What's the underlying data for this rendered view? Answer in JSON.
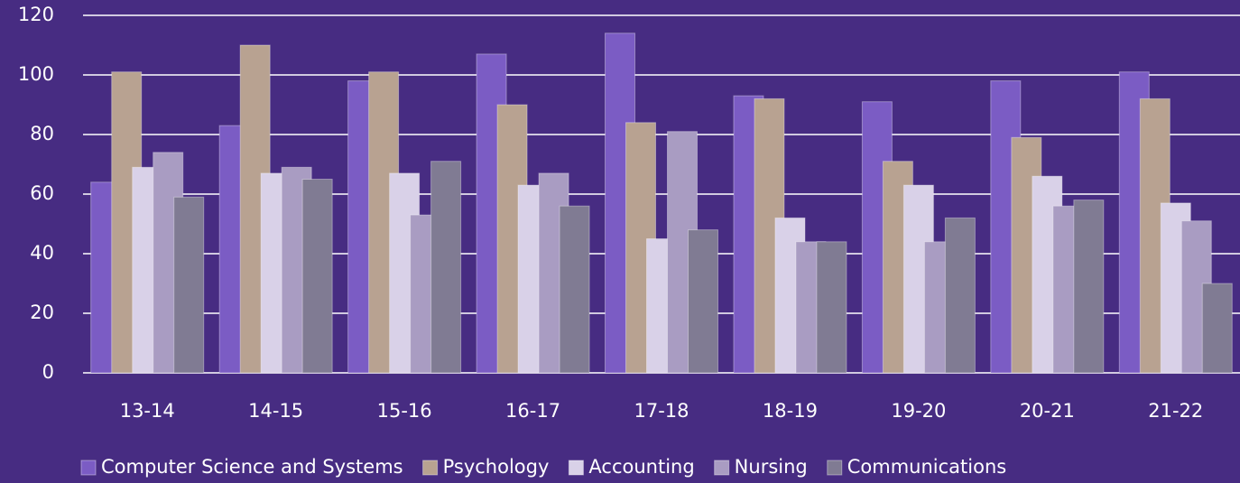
{
  "chart_data": {
    "type": "bar",
    "categories": [
      "13-14",
      "14-15",
      "15-16",
      "16-17",
      "17-18",
      "18-19",
      "19-20",
      "20-21",
      "21-22"
    ],
    "series": [
      {
        "name": "Computer Science and Systems",
        "color": "#7b5cc4",
        "values": [
          64,
          83,
          98,
          107,
          114,
          93,
          91,
          98,
          101
        ]
      },
      {
        "name": "Psychology",
        "color": "#b8a291",
        "values": [
          101,
          110,
          101,
          90,
          84,
          92,
          71,
          79,
          92
        ]
      },
      {
        "name": "Accounting",
        "color": "#d9d1e8",
        "values": [
          69,
          67,
          67,
          63,
          45,
          52,
          63,
          66,
          57
        ]
      },
      {
        "name": "Nursing",
        "color": "#a99cc2",
        "values": [
          74,
          69,
          53,
          67,
          81,
          44,
          44,
          56,
          51
        ]
      },
      {
        "name": "Communications",
        "color": "#807b93",
        "values": [
          59,
          65,
          71,
          56,
          48,
          44,
          52,
          58,
          30
        ]
      }
    ],
    "ylim": [
      0,
      120
    ],
    "yticks": [
      0,
      20,
      40,
      60,
      80,
      100,
      120
    ],
    "grid": true,
    "legend": "bottom"
  }
}
